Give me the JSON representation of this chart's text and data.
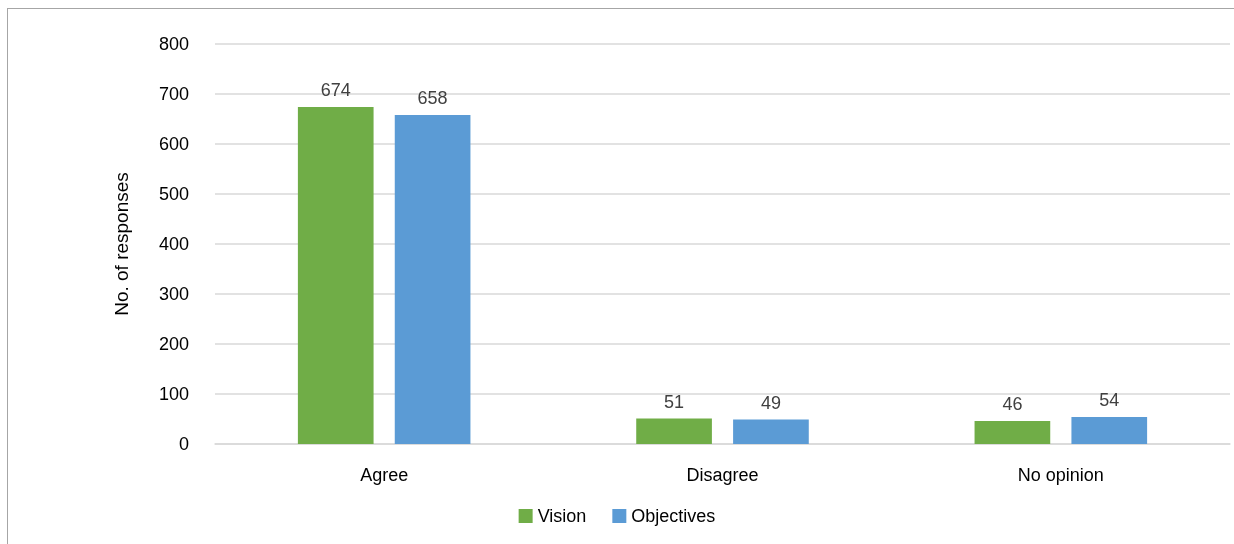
{
  "chart_data": {
    "type": "bar",
    "categories": [
      "Agree",
      "Disagree",
      "No opinion"
    ],
    "series": [
      {
        "name": "Vision",
        "color": "#70ad47",
        "values": [
          674,
          51,
          46
        ]
      },
      {
        "name": "Objectives",
        "color": "#5b9bd5",
        "values": [
          658,
          49,
          54
        ]
      }
    ],
    "ylabel": "No. of responses",
    "ylim": [
      0,
      800
    ],
    "yticks": [
      0,
      100,
      200,
      300,
      400,
      500,
      600,
      700,
      800
    ],
    "grid": "y",
    "legend": "bottom",
    "data_labels": true
  }
}
